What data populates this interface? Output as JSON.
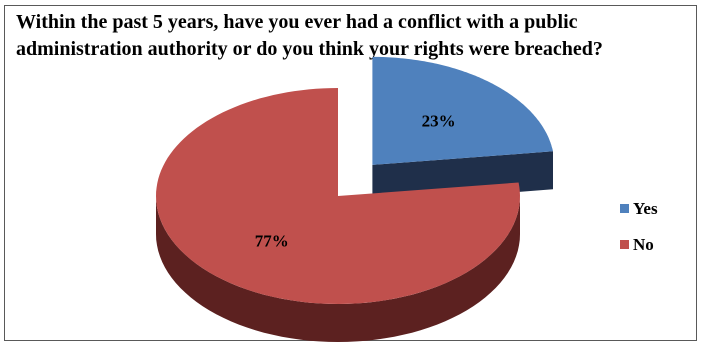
{
  "chart_data": {
    "type": "pie",
    "title_lines": [
      "Within the past 5 years, have you ever had a conflict with a public",
      "administration authority or do you think your rights were breached?"
    ],
    "categories": [
      "Yes",
      "No"
    ],
    "values": [
      23,
      77
    ],
    "data_labels": [
      "23%",
      "77%"
    ],
    "colors": [
      "#4F81BD",
      "#C0504D"
    ],
    "side_colors": [
      "#1F2F4A",
      "#5C2120"
    ],
    "three_d": true,
    "exploded": "Yes",
    "legend_position": "right"
  }
}
